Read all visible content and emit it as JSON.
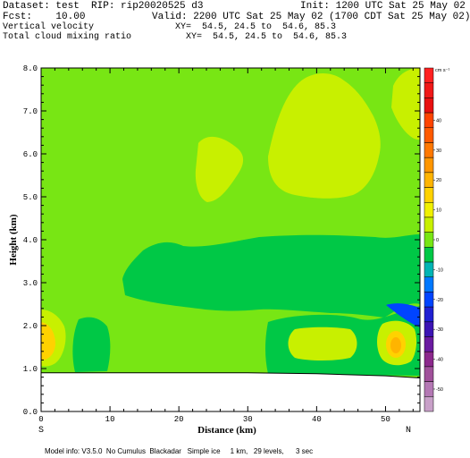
{
  "header": {
    "dataset": "Dataset: test  RIP: rip20020525 d3",
    "init": "Init: 1200 UTC Sat 25 May 02",
    "fcst": "Fcst:    10.00",
    "valid": "Valid: 2200 UTC Sat 25 May 02 (1700 CDT Sat 25 May 02)",
    "field1": "Vertical velocity",
    "field1_xy": "XY=  54.5, 24.5 to  54.6, 85.3",
    "field2": "Total cloud mixing ratio",
    "field2_xy": "XY=  54.5, 24.5 to  54.6, 85.3"
  },
  "footer": {
    "model_info": "Model info: V3.5.0  No Cumulus  Blackadar   Simple ice     1 km,   29 levels,      3 sec"
  },
  "chart_data": {
    "type": "heatmap",
    "title": "",
    "xlabel": "Distance (km)",
    "ylabel": "Height (km)",
    "xlim": [
      0,
      55
    ],
    "ylim": [
      0,
      8
    ],
    "x_ticks": [
      "0",
      "10",
      "20",
      "30",
      "40",
      "50"
    ],
    "y_ticks": [
      "0.0",
      "1.0",
      "2.0",
      "3.0",
      "4.0",
      "5.0",
      "6.0",
      "7.0",
      "8.0"
    ],
    "x_end_labels": {
      "left": "S",
      "right": "N"
    },
    "colorbar": {
      "unit": "cm s⁻¹",
      "labels": [
        "40",
        "30",
        "20",
        "10",
        "0",
        "-10",
        "-20",
        "-30",
        "-40",
        "-50"
      ],
      "levels": [
        55,
        50,
        45,
        40,
        35,
        30,
        25,
        20,
        15,
        10,
        5,
        0,
        -5,
        -10,
        -15,
        -20,
        -25,
        -30,
        -35,
        -40,
        -45,
        -50,
        -55
      ],
      "colors": [
        "#ff2020",
        "#f01818",
        "#e81010",
        "#ff4400",
        "#ff5a00",
        "#ff7800",
        "#ff9600",
        "#ffb400",
        "#ffd200",
        "#f0f000",
        "#c8f000",
        "#78e614",
        "#00c846",
        "#00b4b4",
        "#0078ff",
        "#0044ff",
        "#2020d2",
        "#3c14b4",
        "#6a1aa0",
        "#8c288c",
        "#a0509a",
        "#b478b4",
        "#c8a0c8"
      ]
    },
    "regions": {
      "background": "#78e614",
      "core_green": "#00c846",
      "yellow": "#c8f000",
      "bright_yellow": "#ffd200",
      "orange_core": "#ffb400",
      "blue": "#0044ff",
      "terrain": "#ffffff"
    },
    "terrain": {
      "x": [
        0,
        30,
        40,
        50,
        55
      ],
      "y": [
        0.9,
        0.9,
        0.88,
        0.83,
        0.78
      ]
    }
  }
}
